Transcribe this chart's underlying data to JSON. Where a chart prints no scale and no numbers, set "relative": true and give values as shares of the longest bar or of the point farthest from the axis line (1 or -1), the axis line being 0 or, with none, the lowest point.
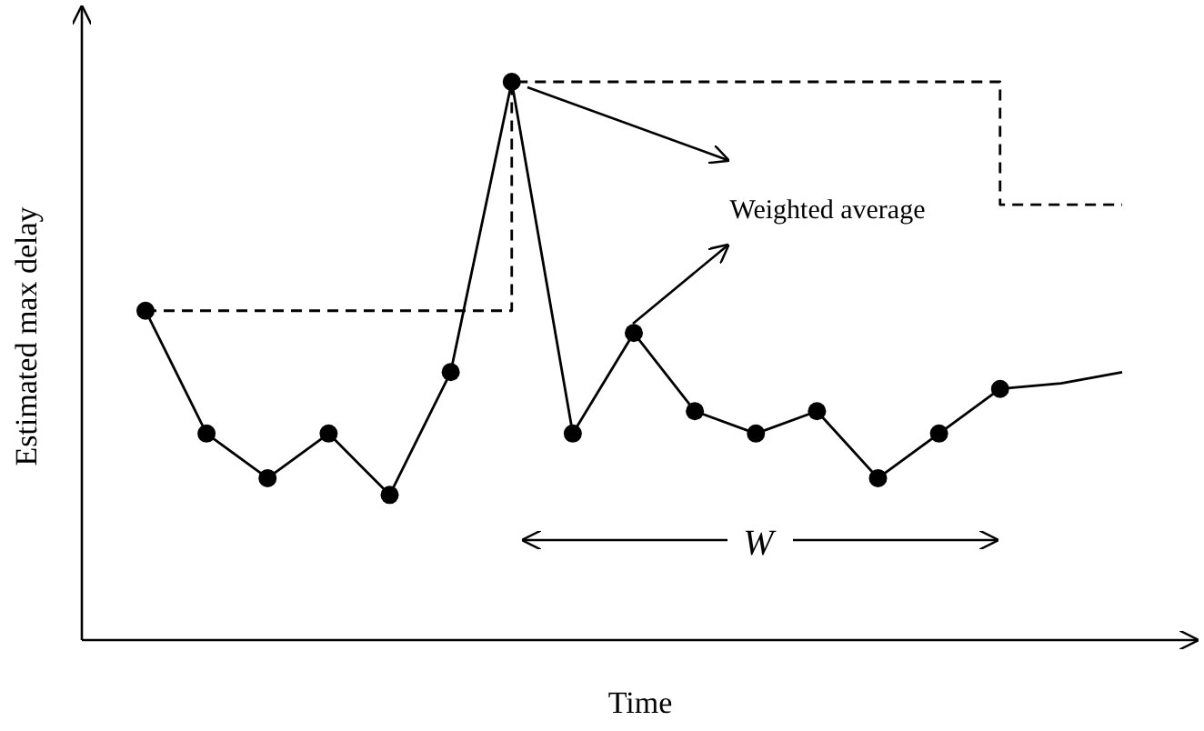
{
  "chart_data": {
    "type": "line",
    "relative": true,
    "xlabel": "Time",
    "ylabel": "Estimated max delay",
    "categories": [
      null,
      null,
      null,
      null,
      null,
      null,
      null,
      null,
      null,
      null,
      null,
      null,
      null,
      null,
      null,
      null,
      null
    ],
    "series": [
      {
        "marker": "circle",
        "color": "#000000",
        "values": [
          0.59,
          0.37,
          0.29,
          0.37,
          0.26,
          0.48,
          1,
          0.37,
          0.55,
          0.41,
          0.37,
          0.41,
          0.29,
          0.37,
          0.45,
          null,
          null
        ]
      },
      {
        "marker": "none",
        "color": "#000000",
        "values": [
          null,
          null,
          null,
          null,
          null,
          null,
          null,
          null,
          null,
          null,
          null,
          null,
          null,
          null,
          0.45,
          0.46,
          0.48
        ]
      },
      {
        "type": "step",
        "line_style": "dashed",
        "marker": "none",
        "color": "#000000",
        "values": [
          0.59,
          0.59,
          0.59,
          0.59,
          0.59,
          0.59,
          1,
          1,
          1,
          1,
          1,
          1,
          1,
          1,
          0.78,
          0.78,
          0.78
        ]
      }
    ],
    "annotations": [
      "Weighted average",
      "W"
    ]
  }
}
